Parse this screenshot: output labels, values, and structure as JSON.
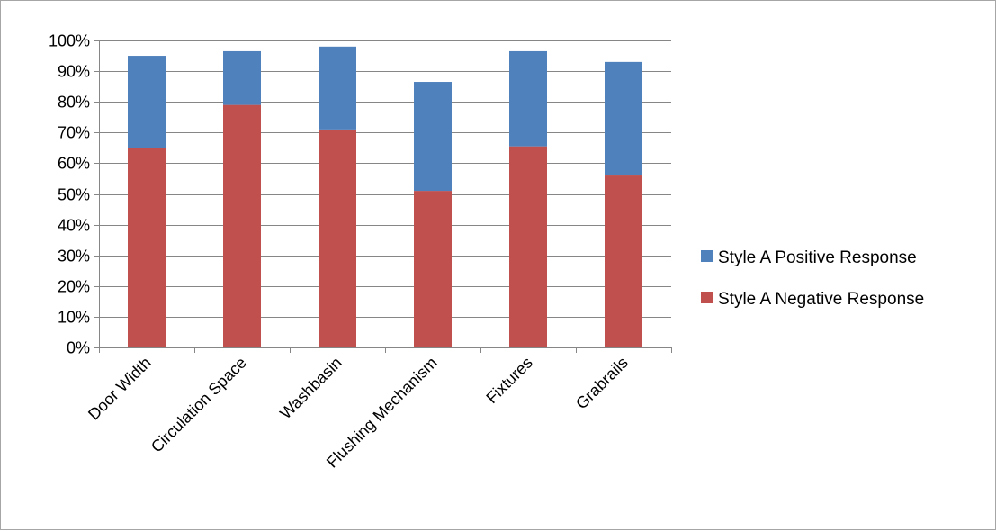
{
  "chart_data": {
    "type": "bar",
    "stacked": true,
    "title": "",
    "xlabel": "",
    "ylabel": "",
    "categories": [
      "Door Width",
      "Circulation Space",
      "Washbasin",
      "Flushing Mechanism",
      "Fixtures",
      "Grabrails"
    ],
    "series": [
      {
        "name": "Style A Negative Response",
        "color": "#c0504d",
        "values": [
          0.65,
          0.79,
          0.71,
          0.51,
          0.655,
          0.56
        ]
      },
      {
        "name": "Style A Positive Response",
        "color": "#4f81bd",
        "values": [
          0.3,
          0.175,
          0.27,
          0.355,
          0.31,
          0.37
        ]
      }
    ],
    "ylim": [
      0,
      1
    ],
    "yticks": [
      "0%",
      "10%",
      "20%",
      "30%",
      "40%",
      "50%",
      "60%",
      "70%",
      "80%",
      "90%",
      "100%"
    ],
    "grid": true,
    "legend": {
      "position": "right",
      "entries": [
        "Style A Positive Response",
        "Style A Negative Response"
      ]
    }
  }
}
